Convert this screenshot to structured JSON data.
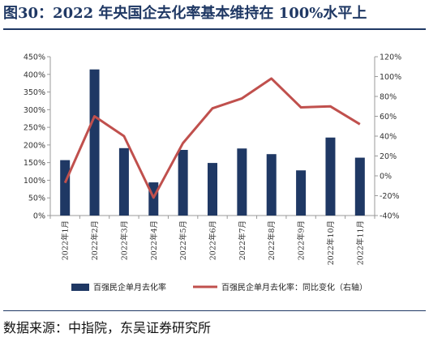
{
  "title": "图30：2022 年央国企去化率基本维持在 100%水平上",
  "source": "数据来源：中指院，东吴证券研究所",
  "chart_data": {
    "type": "bar",
    "categories": [
      "2022年1月",
      "2022年2月",
      "2022年3月",
      "2022年4月",
      "2022年5月",
      "2022年6月",
      "2022年7月",
      "2022年8月",
      "2022年9月",
      "2022年10月",
      "2022年11月"
    ],
    "series": [
      {
        "name": "百强民企单月去化率",
        "type": "bar",
        "axis": "left",
        "color": "#1f3864",
        "values": [
          157,
          414,
          191,
          94,
          186,
          149,
          190,
          174,
          128,
          221,
          164
        ]
      },
      {
        "name": "百强民企单月去化率：同比变化（右轴）",
        "type": "line",
        "axis": "right",
        "color": "#c0504d",
        "values": [
          -7,
          60,
          40,
          -22,
          33,
          68,
          78,
          98,
          69,
          70,
          52
        ]
      }
    ],
    "left_axis": {
      "ylim": [
        0,
        450
      ],
      "ticks": [
        "0%",
        "50%",
        "100%",
        "150%",
        "200%",
        "250%",
        "300%",
        "350%",
        "400%",
        "450%"
      ]
    },
    "right_axis": {
      "ylim": [
        -40,
        120
      ],
      "ticks": [
        "-40%",
        "-20%",
        "0%",
        "20%",
        "40%",
        "60%",
        "80%",
        "100%",
        "120%"
      ]
    },
    "legend_position": "bottom"
  }
}
